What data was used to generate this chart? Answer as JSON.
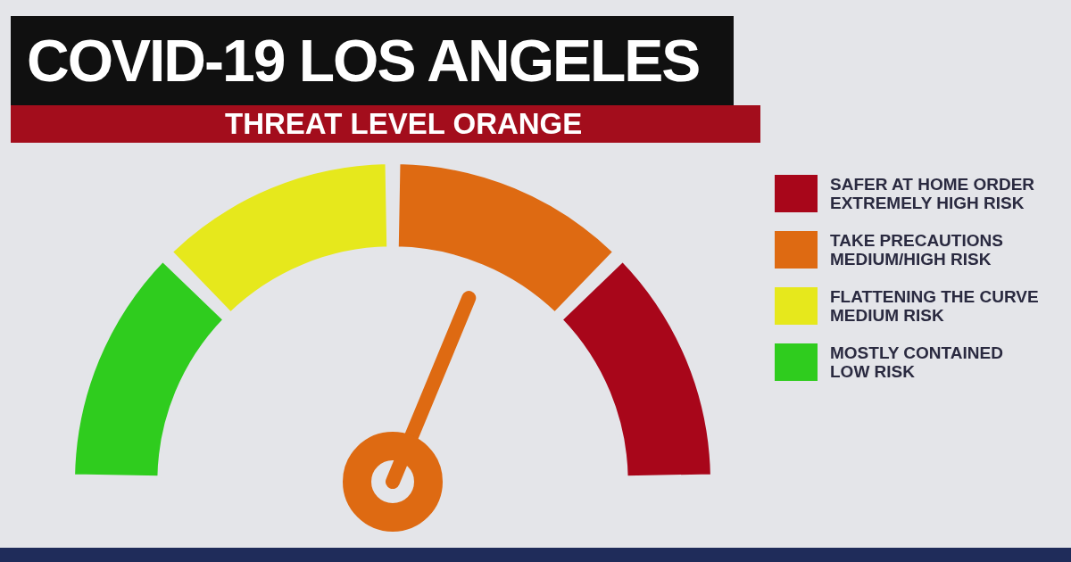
{
  "chart_data": {
    "type": "donut",
    "title": "COVID-19 LOS ANGELES",
    "subtitle": "THREAT LEVEL ORANGE",
    "categories": [
      "MOSTLY CONTAINED\nLOW RISK",
      "FLATTENING THE CURVE\nMEDIUM RISK",
      "TAKE PRECAUTIONS\nMEDIUM/HIGH RISK",
      "SAFER AT HOME ORDER\nEXTREMELY HIGH RISK"
    ],
    "values": [
      25,
      25,
      25,
      25
    ],
    "colors": [
      "#2fcc1e",
      "#e6e81c",
      "#de6a12",
      "#a8061a"
    ],
    "needle": "TAKE PRECAUTIONS\nMEDIUM/HIGH RISK",
    "legend": "right"
  }
}
